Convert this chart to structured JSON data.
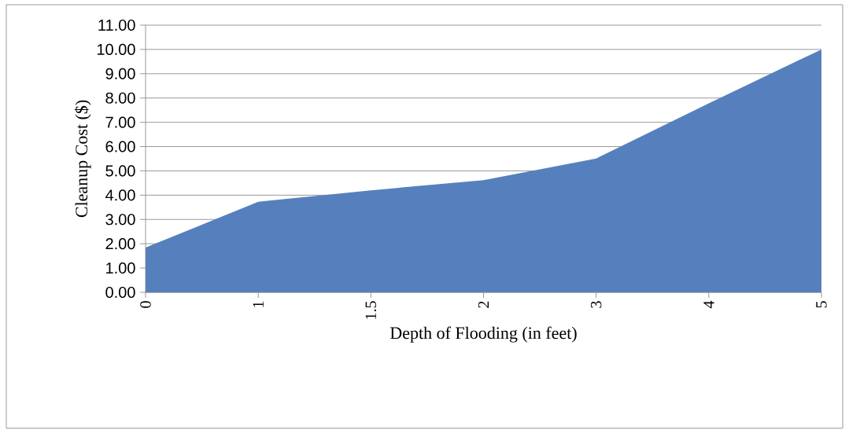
{
  "chart_data": {
    "type": "area",
    "xlabel": "Depth of Flooding (in feet)",
    "ylabel": "Cleanup Cost ($)",
    "categories": [
      "0",
      "1",
      "1.5",
      "2",
      "3",
      "4",
      "5"
    ],
    "values": [
      1.84,
      3.73,
      4.2,
      4.62,
      5.51,
      7.78,
      10.0
    ],
    "color": "#5680bd",
    "ylim": [
      0,
      11
    ],
    "yticks": [
      {
        "value": 0,
        "label": "0.00"
      },
      {
        "value": 1,
        "label": "1.00"
      },
      {
        "value": 2,
        "label": "2.00"
      },
      {
        "value": 3,
        "label": "3.00"
      },
      {
        "value": 4,
        "label": "4.00"
      },
      {
        "value": 5,
        "label": "5.00"
      },
      {
        "value": 6,
        "label": "6.00"
      },
      {
        "value": 7,
        "label": "7.00"
      },
      {
        "value": 8,
        "label": "8.00"
      },
      {
        "value": 9,
        "label": "9.00"
      },
      {
        "value": 10,
        "label": "10.00"
      },
      {
        "value": 11,
        "label": "11.00"
      }
    ],
    "grid": "y"
  }
}
